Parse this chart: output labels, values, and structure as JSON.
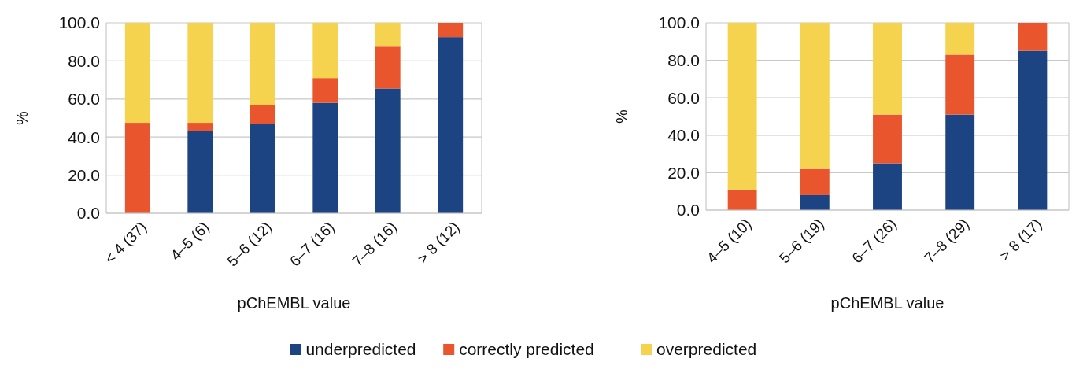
{
  "chart_data": [
    {
      "type": "bar",
      "stacked": true,
      "categories": [
        "< 4 (37)",
        "4–5 (6)",
        "5–6 (12)",
        "6–7 (16)",
        "7–8 (16)",
        "> 8 (12)"
      ],
      "xlabel": "pChEMBL value",
      "ylabel": "%",
      "ylim": [
        0,
        100
      ],
      "yticks": [
        {
          "value": 0,
          "label": "0.0"
        },
        {
          "value": 20,
          "label": "20.0"
        },
        {
          "value": 40,
          "label": "40.0"
        },
        {
          "value": 60,
          "label": "60.0"
        },
        {
          "value": 80,
          "label": "80.0"
        },
        {
          "value": 100,
          "label": "100.0"
        }
      ],
      "grid": "y",
      "legend": "bottom",
      "series": [
        {
          "name": "underpredicted",
          "color": "#1c4382",
          "values": [
            0,
            43,
            47,
            58,
            65.5,
            92.5
          ]
        },
        {
          "name": "correctly predicted",
          "color": "#e9552c",
          "values": [
            47.5,
            4.5,
            10,
            13,
            22,
            7.5
          ]
        },
        {
          "name": "overpredicted",
          "color": "#f5d34f",
          "values": [
            52.5,
            52.5,
            43,
            29,
            12.5,
            0
          ]
        }
      ]
    },
    {
      "type": "bar",
      "stacked": true,
      "categories": [
        "4–5 (10)",
        "5–6 (19)",
        "6–7 (26)",
        "7–8 (29)",
        "> 8 (17)"
      ],
      "xlabel": "pChEMBL value",
      "ylabel": "%",
      "ylim": [
        0,
        100
      ],
      "yticks": [
        {
          "value": 0,
          "label": "0.0"
        },
        {
          "value": 20,
          "label": "20.0"
        },
        {
          "value": 40,
          "label": "40.0"
        },
        {
          "value": 60,
          "label": "60.0"
        },
        {
          "value": 80,
          "label": "80.0"
        },
        {
          "value": 100,
          "label": "100.0"
        }
      ],
      "grid": "y",
      "series": [
        {
          "color": "#1c4382",
          "values": [
            0,
            8,
            25,
            51,
            85
          ]
        },
        {
          "color": "#e9552c",
          "values": [
            11,
            14,
            26,
            32,
            15
          ]
        },
        {
          "color": "#f5d34f",
          "values": [
            89,
            78,
            49,
            17,
            0
          ]
        }
      ]
    }
  ]
}
